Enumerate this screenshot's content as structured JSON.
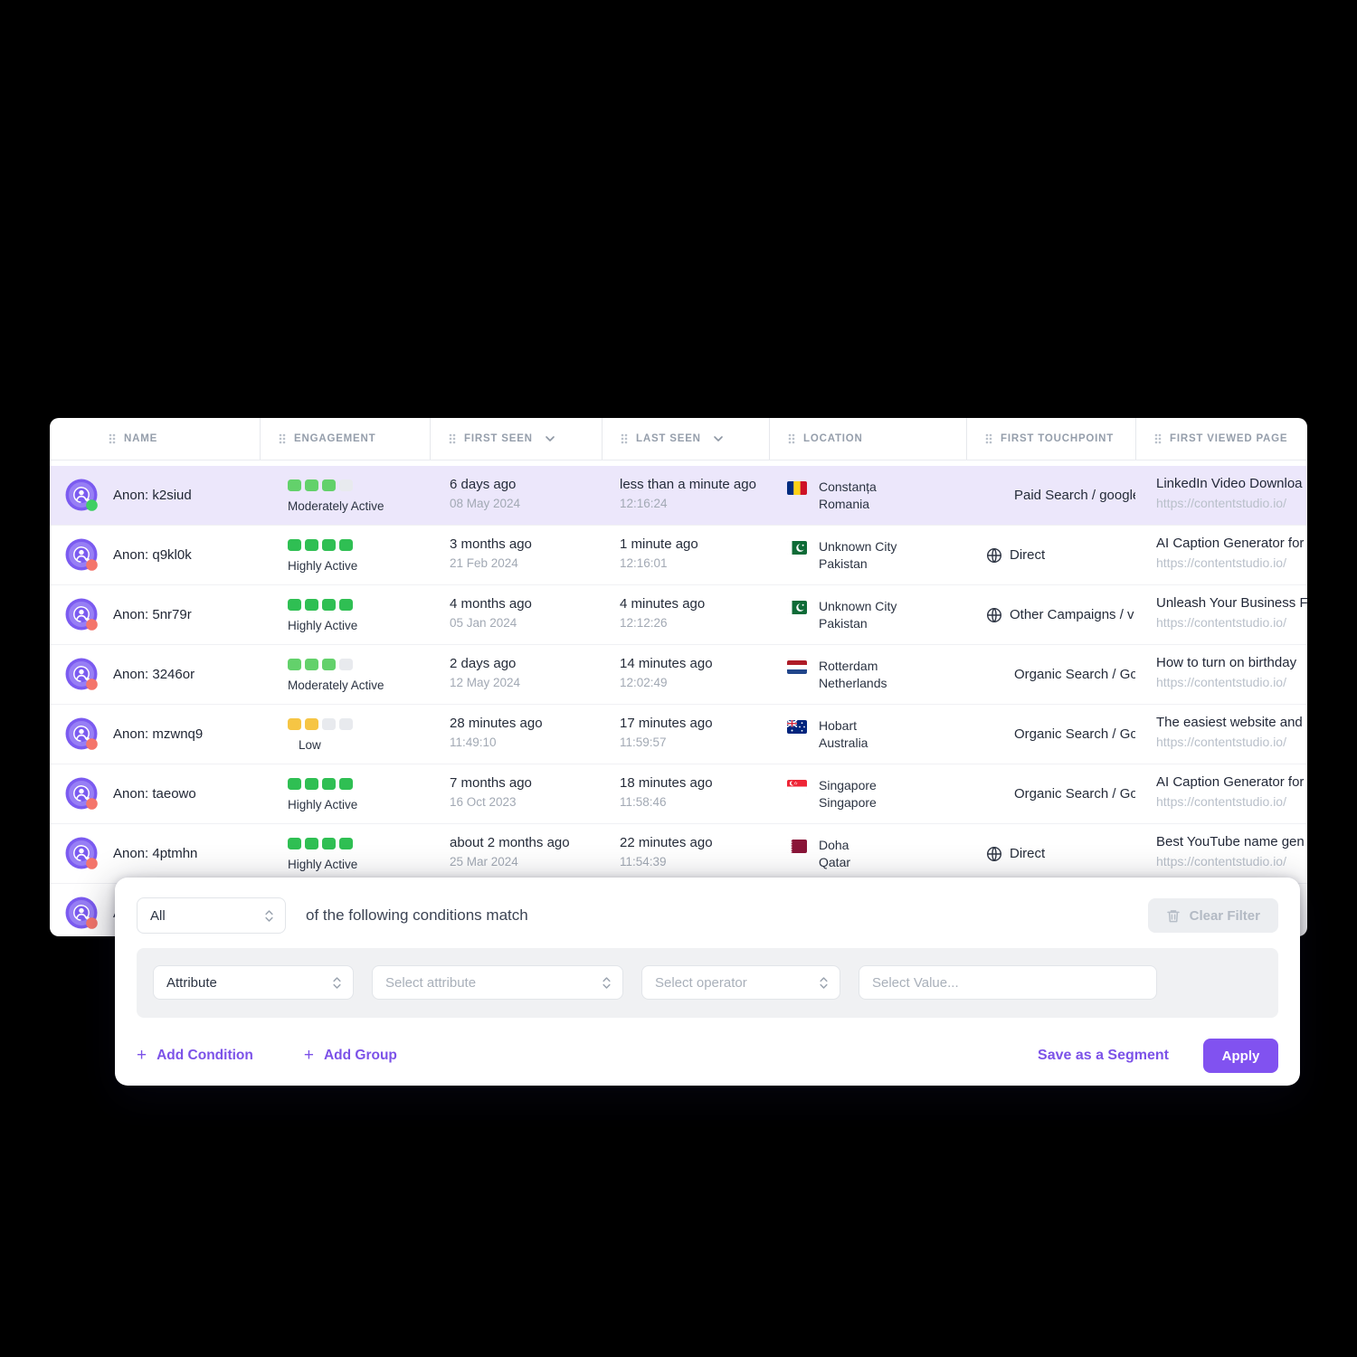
{
  "table": {
    "headers": [
      {
        "label": "NAME",
        "sortable": false
      },
      {
        "label": "ENGAGEMENT",
        "sortable": false
      },
      {
        "label": "FIRST SEEN",
        "sortable": true
      },
      {
        "label": "LAST SEEN",
        "sortable": true
      },
      {
        "label": "LOCATION",
        "sortable": false
      },
      {
        "label": "FIRST TOUCHPOINT",
        "sortable": false
      },
      {
        "label": "FIRST VIEWED PAGE",
        "sortable": false
      }
    ],
    "rows": [
      {
        "name": "Anon: k2siud",
        "status_dot": "green",
        "highlight": true,
        "engagement": {
          "filled": 3,
          "palette": "moderate",
          "label": "Moderately Active"
        },
        "first_seen": {
          "rel": "6 days ago",
          "sub": "08 May 2024"
        },
        "last_seen": {
          "rel": "less than a minute ago",
          "sub": "12:16:24"
        },
        "location": {
          "city": "Constanța",
          "country": "Romania",
          "flag": "ro"
        },
        "touchpoint": {
          "globe": false,
          "label": "Paid Search / google"
        },
        "page": {
          "title": "LinkedIn Video Downloa",
          "url": "https://contentstudio.io/"
        }
      },
      {
        "name": "Anon: q9kl0k",
        "status_dot": "red",
        "highlight": false,
        "engagement": {
          "filled": 4,
          "palette": "high",
          "label": "Highly Active"
        },
        "first_seen": {
          "rel": "3 months ago",
          "sub": "21 Feb 2024"
        },
        "last_seen": {
          "rel": "1 minute ago",
          "sub": "12:16:01"
        },
        "location": {
          "city": "Unknown City",
          "country": "Pakistan",
          "flag": "pk"
        },
        "touchpoint": {
          "globe": true,
          "label": "Direct"
        },
        "page": {
          "title": "AI Caption Generator for",
          "url": "https://contentstudio.io/"
        }
      },
      {
        "name": "Anon: 5nr79r",
        "status_dot": "red",
        "highlight": false,
        "engagement": {
          "filled": 4,
          "palette": "high",
          "label": "Highly Active"
        },
        "first_seen": {
          "rel": "4 months ago",
          "sub": "05 Jan 2024"
        },
        "last_seen": {
          "rel": "4 minutes ago",
          "sub": "12:12:26"
        },
        "location": {
          "city": "Unknown City",
          "country": "Pakistan",
          "flag": "pk"
        },
        "touchpoint": {
          "globe": true,
          "label": "Other Campaigns / v"
        },
        "page": {
          "title": "Unleash Your Business F",
          "url": "https://contentstudio.io/"
        }
      },
      {
        "name": "Anon: 3246or",
        "status_dot": "red",
        "highlight": false,
        "engagement": {
          "filled": 3,
          "palette": "moderate",
          "label": "Moderately Active"
        },
        "first_seen": {
          "rel": "2 days ago",
          "sub": "12 May 2024"
        },
        "last_seen": {
          "rel": "14 minutes ago",
          "sub": "12:02:49"
        },
        "location": {
          "city": "Rotterdam",
          "country": "Netherlands",
          "flag": "nl"
        },
        "touchpoint": {
          "globe": false,
          "label": "Organic Search / Go"
        },
        "page": {
          "title": "How to turn on birthday",
          "url": "https://contentstudio.io/"
        }
      },
      {
        "name": "Anon: mzwnq9",
        "status_dot": "red",
        "highlight": false,
        "engagement": {
          "filled": 2,
          "palette": "low",
          "label": "Low"
        },
        "first_seen": {
          "rel": "28 minutes ago",
          "sub": "11:49:10"
        },
        "last_seen": {
          "rel": "17 minutes ago",
          "sub": "11:59:57"
        },
        "location": {
          "city": "Hobart",
          "country": "Australia",
          "flag": "au"
        },
        "touchpoint": {
          "globe": false,
          "label": "Organic Search / Go"
        },
        "page": {
          "title": "The easiest website and",
          "url": "https://contentstudio.io/"
        }
      },
      {
        "name": "Anon: taeowo",
        "status_dot": "red",
        "highlight": false,
        "engagement": {
          "filled": 4,
          "palette": "high",
          "label": "Highly Active"
        },
        "first_seen": {
          "rel": "7 months ago",
          "sub": "16 Oct 2023"
        },
        "last_seen": {
          "rel": "18 minutes ago",
          "sub": "11:58:46"
        },
        "location": {
          "city": "Singapore",
          "country": "Singapore",
          "flag": "sg"
        },
        "touchpoint": {
          "globe": false,
          "label": "Organic Search / Go"
        },
        "page": {
          "title": "AI Caption Generator for",
          "url": "https://contentstudio.io/"
        }
      },
      {
        "name": "Anon: 4ptmhn",
        "status_dot": "red",
        "highlight": false,
        "engagement": {
          "filled": 4,
          "palette": "high",
          "label": "Highly Active"
        },
        "first_seen": {
          "rel": "about 2 months ago",
          "sub": "25 Mar 2024"
        },
        "last_seen": {
          "rel": "22 minutes ago",
          "sub": "11:54:39"
        },
        "location": {
          "city": "Doha",
          "country": "Qatar",
          "flag": "qa"
        },
        "touchpoint": {
          "globe": true,
          "label": "Direct"
        },
        "page": {
          "title": "Best YouTube name gen",
          "url": "https://contentstudio.io/"
        }
      },
      {
        "name": "A",
        "status_dot": "red",
        "highlight": false,
        "engagement": null,
        "first_seen": null,
        "last_seen": null,
        "location": null,
        "touchpoint": null,
        "page": null
      }
    ]
  },
  "filter": {
    "match_select_value": "All",
    "match_text": "of the following conditions match",
    "clear_button_label": "Clear Filter",
    "attribute_select_value": "Attribute",
    "attribute_placeholder": "Select attribute",
    "operator_placeholder": "Select operator",
    "value_placeholder": "Select Value...",
    "add_condition_label": "Add Condition",
    "add_group_label": "Add Group",
    "save_segment_label": "Save as a Segment",
    "apply_label": "Apply"
  },
  "colors": {
    "accent_purple": "#7c52e8",
    "apply_purple": "#8152f0",
    "highlight_row": "#ece7fb",
    "engagement_high": "#2fbf53",
    "engagement_moderate": "#63d16b",
    "engagement_low": "#f6c544",
    "engagement_empty": "#e8eaee",
    "status_green": "#3fcf63",
    "status_red": "#f4756b"
  }
}
